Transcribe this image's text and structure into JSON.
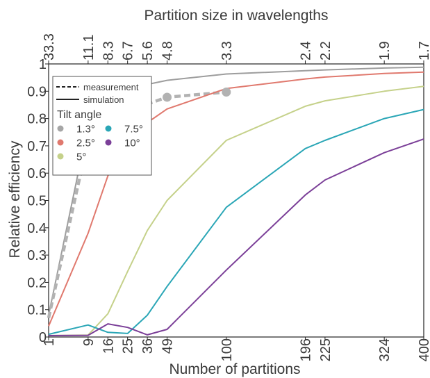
{
  "chart_data": {
    "type": "line",
    "xlabel": "Number of partitions",
    "x2label": "Partition size in wavelengths",
    "ylabel": "Relative efficiency",
    "xscale": "sqrt",
    "xlim": [
      1,
      400
    ],
    "ylim": [
      0,
      1
    ],
    "grid": false,
    "x_ticks": [
      "1",
      "9",
      "16",
      "25",
      "36",
      "49",
      "100",
      "196",
      "225",
      "324",
      "400"
    ],
    "x2_ticks": [
      "33.3",
      "11.1",
      "8.3",
      "6.7",
      "5.6",
      "4.8",
      "3.3",
      "2.4",
      "2.2",
      "1.9",
      "1.7"
    ],
    "y_ticks": [
      "0",
      "0.1",
      "0.2",
      "0.3",
      "0.4",
      "0.5",
      "0.6",
      "0.7",
      "0.8",
      "0.9",
      "1"
    ],
    "legend": {
      "placement": "top-left",
      "style_entries": [
        "measurement",
        "simulation"
      ],
      "title": "Tilt angle"
    },
    "series": [
      {
        "name": "1.3°",
        "color": "#9d9d9d",
        "style": "simulation",
        "x": [
          1,
          9,
          16,
          25,
          36,
          49,
          100,
          196,
          225,
          324,
          400
        ],
        "y": [
          0.08,
          0.775,
          0.86,
          0.9,
          0.925,
          0.94,
          0.963,
          0.975,
          0.978,
          0.985,
          0.988
        ]
      },
      {
        "name": "1.3°",
        "color": "#b2b2b2",
        "style": "measurement",
        "x": [
          1,
          9,
          16,
          49,
          100
        ],
        "y": [
          0.07,
          0.722,
          0.803,
          0.878,
          0.897
        ]
      },
      {
        "name": "2.5°",
        "color": "#e0796e",
        "style": "simulation",
        "x": [
          1,
          9,
          16,
          25,
          36,
          49,
          100,
          196,
          225,
          324,
          400
        ],
        "y": [
          0.04,
          0.38,
          0.59,
          0.71,
          0.785,
          0.835,
          0.91,
          0.945,
          0.952,
          0.965,
          0.97
        ]
      },
      {
        "name": "5°",
        "color": "#c5d18a",
        "style": "simulation",
        "x": [
          1,
          9,
          16,
          25,
          36,
          49,
          100,
          196,
          225,
          324,
          400
        ],
        "y": [
          0.005,
          0.007,
          0.085,
          0.24,
          0.39,
          0.5,
          0.72,
          0.845,
          0.865,
          0.9,
          0.918
        ]
      },
      {
        "name": "7.5°",
        "color": "#2aa6b6",
        "style": "simulation",
        "x": [
          1,
          9,
          16,
          25,
          36,
          49,
          100,
          196,
          225,
          324,
          400
        ],
        "y": [
          0.01,
          0.044,
          0.017,
          0.013,
          0.08,
          0.185,
          0.475,
          0.69,
          0.72,
          0.8,
          0.833
        ]
      },
      {
        "name": "10°",
        "color": "#7b3f98",
        "style": "simulation",
        "x": [
          1,
          9,
          16,
          25,
          36,
          49,
          100,
          196,
          225,
          324,
          400
        ],
        "y": [
          0.005,
          0.006,
          0.048,
          0.035,
          0.008,
          0.028,
          0.245,
          0.52,
          0.575,
          0.675,
          0.725
        ]
      }
    ],
    "legend_dots": [
      {
        "label": "1.3°",
        "color": "#a6a6a6"
      },
      {
        "label": "2.5°",
        "color": "#e0796e"
      },
      {
        "label": "5°",
        "color": "#c5d18a"
      },
      {
        "label": "7.5°",
        "color": "#2aa6b6"
      },
      {
        "label": "10°",
        "color": "#7b3f98"
      }
    ]
  }
}
